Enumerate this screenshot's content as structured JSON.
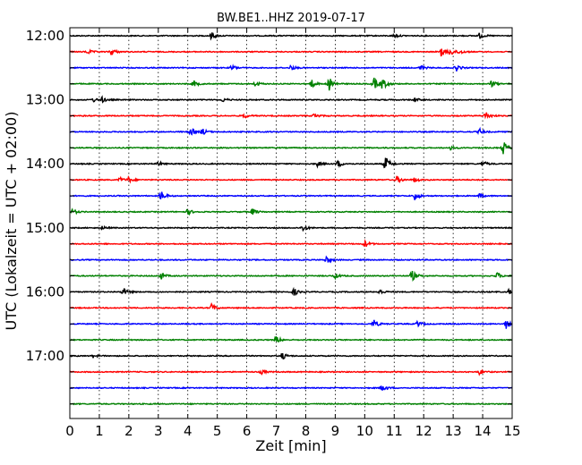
{
  "chart_data": {
    "type": "line",
    "title": "BW.BE1..HHZ 2019-07-17",
    "xlabel": "Zeit  [min]",
    "ylabel": "UTC (Lokalzeit = UTC + 02:00)",
    "xlim": [
      0,
      15
    ],
    "x_ticks": [
      "0",
      "1",
      "2",
      "3",
      "4",
      "5",
      "6",
      "7",
      "8",
      "9",
      "10",
      "11",
      "12",
      "13",
      "14",
      "15"
    ],
    "grid": "vertical-dotted",
    "trace_interval_min": 15,
    "y_tick_labels": [
      "12:00",
      "13:00",
      "14:00",
      "15:00",
      "16:00",
      "17:00"
    ],
    "color_cycle": [
      "#000000",
      "#ff0000",
      "#0000ff",
      "#008000"
    ],
    "traces": [
      {
        "start": "12:00",
        "events": [
          {
            "t": 4.8,
            "a": 0.45
          },
          {
            "t": 13.9,
            "a": 0.35
          },
          {
            "t": 11.0,
            "a": 0.2
          }
        ]
      },
      {
        "start": "12:15",
        "events": [
          {
            "t": 0.6,
            "a": 0.3
          },
          {
            "t": 1.4,
            "a": 0.5
          },
          {
            "t": 12.6,
            "a": 0.55
          },
          {
            "t": 12.9,
            "a": 0.5
          },
          {
            "t": 13.2,
            "a": 0.3
          }
        ]
      },
      {
        "start": "12:30",
        "events": [
          {
            "t": 5.5,
            "a": 0.35
          },
          {
            "t": 7.5,
            "a": 0.3
          },
          {
            "t": 11.9,
            "a": 0.3
          },
          {
            "t": 13.1,
            "a": 0.45
          }
        ]
      },
      {
        "start": "12:45",
        "events": [
          {
            "t": 4.2,
            "a": 0.4
          },
          {
            "t": 6.3,
            "a": 0.3
          },
          {
            "t": 8.2,
            "a": 0.5
          },
          {
            "t": 8.8,
            "a": 0.85
          },
          {
            "t": 10.3,
            "a": 0.8
          },
          {
            "t": 10.6,
            "a": 0.7
          },
          {
            "t": 14.3,
            "a": 0.4
          }
        ]
      },
      {
        "start": "13:00",
        "events": [
          {
            "t": 0.8,
            "a": 0.25
          },
          {
            "t": 1.1,
            "a": 0.3
          },
          {
            "t": 5.2,
            "a": 0.25
          },
          {
            "t": 11.7,
            "a": 0.25
          }
        ]
      },
      {
        "start": "13:15",
        "events": [
          {
            "t": 5.9,
            "a": 0.3
          },
          {
            "t": 8.3,
            "a": 0.35
          },
          {
            "t": 14.1,
            "a": 0.55
          }
        ]
      },
      {
        "start": "13:30",
        "events": [
          {
            "t": 4.1,
            "a": 0.55
          },
          {
            "t": 4.5,
            "a": 0.4
          },
          {
            "t": 13.9,
            "a": 0.35
          }
        ]
      },
      {
        "start": "13:45",
        "events": [
          {
            "t": 14.7,
            "a": 0.85
          },
          {
            "t": 12.9,
            "a": 0.25
          }
        ]
      },
      {
        "start": "14:00",
        "events": [
          {
            "t": 3.0,
            "a": 0.3
          },
          {
            "t": 8.4,
            "a": 0.3
          },
          {
            "t": 9.1,
            "a": 0.4
          },
          {
            "t": 10.7,
            "a": 0.95
          },
          {
            "t": 14.0,
            "a": 0.35
          }
        ]
      },
      {
        "start": "14:15",
        "events": [
          {
            "t": 1.7,
            "a": 0.3
          },
          {
            "t": 2.0,
            "a": 0.3
          },
          {
            "t": 11.1,
            "a": 0.45
          },
          {
            "t": 11.7,
            "a": 0.3
          }
        ]
      },
      {
        "start": "14:30",
        "events": [
          {
            "t": 3.1,
            "a": 0.65
          },
          {
            "t": 11.7,
            "a": 0.55
          },
          {
            "t": 13.9,
            "a": 0.25
          }
        ]
      },
      {
        "start": "14:45",
        "events": [
          {
            "t": 0.1,
            "a": 0.35
          },
          {
            "t": 4.0,
            "a": 0.35
          },
          {
            "t": 6.2,
            "a": 0.4
          }
        ]
      },
      {
        "start": "15:00",
        "events": [
          {
            "t": 7.9,
            "a": 0.4
          },
          {
            "t": 1.1,
            "a": 0.2
          }
        ]
      },
      {
        "start": "15:15",
        "events": [
          {
            "t": 10.0,
            "a": 0.45
          }
        ]
      },
      {
        "start": "15:30",
        "events": [
          {
            "t": 8.7,
            "a": 0.45
          }
        ]
      },
      {
        "start": "15:45",
        "events": [
          {
            "t": 3.1,
            "a": 0.4
          },
          {
            "t": 9.0,
            "a": 0.3
          },
          {
            "t": 11.6,
            "a": 0.7
          },
          {
            "t": 14.5,
            "a": 0.4
          }
        ]
      },
      {
        "start": "16:00",
        "events": [
          {
            "t": 1.8,
            "a": 0.5
          },
          {
            "t": 7.6,
            "a": 0.45
          },
          {
            "t": 10.5,
            "a": 0.35
          },
          {
            "t": 14.9,
            "a": 0.35
          }
        ]
      },
      {
        "start": "16:15",
        "events": [
          {
            "t": 4.8,
            "a": 0.5
          }
        ]
      },
      {
        "start": "16:30",
        "events": [
          {
            "t": 10.3,
            "a": 0.55
          },
          {
            "t": 11.8,
            "a": 0.35
          },
          {
            "t": 14.8,
            "a": 0.55
          }
        ]
      },
      {
        "start": "16:45",
        "events": [
          {
            "t": 7.0,
            "a": 0.45
          }
        ]
      },
      {
        "start": "17:00",
        "events": [
          {
            "t": 7.2,
            "a": 0.45
          },
          {
            "t": 0.8,
            "a": 0.2
          }
        ]
      },
      {
        "start": "17:15",
        "events": [
          {
            "t": 6.5,
            "a": 0.25
          },
          {
            "t": 13.9,
            "a": 0.3
          }
        ]
      },
      {
        "start": "17:30",
        "events": [
          {
            "t": 10.6,
            "a": 0.45
          }
        ]
      },
      {
        "start": "17:45",
        "events": []
      }
    ]
  }
}
